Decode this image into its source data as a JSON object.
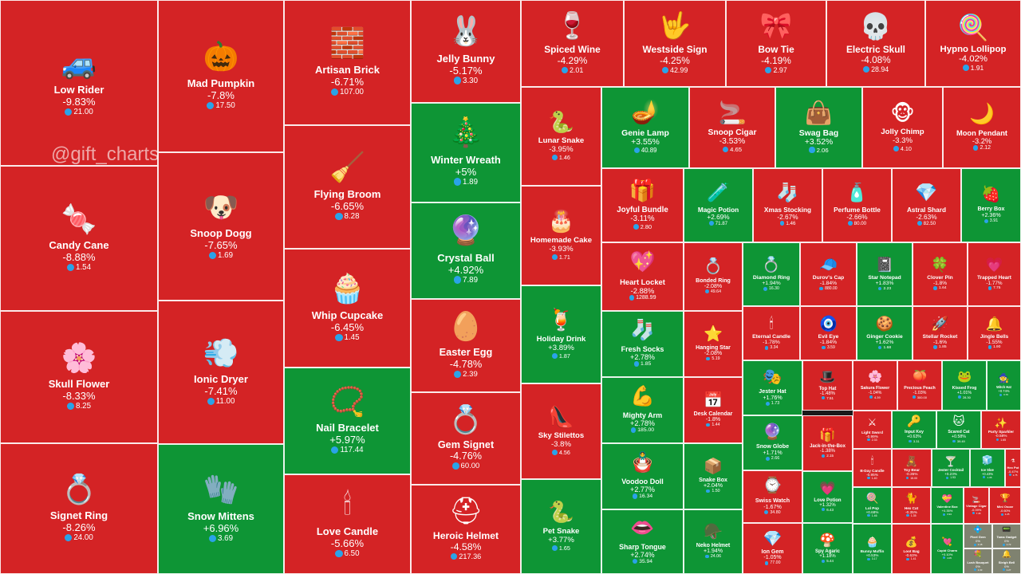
{
  "watermark": "@gift_charts",
  "colors": {
    "loss": "#d42325",
    "gain": "#0e9535",
    "neutral": "#7f8270",
    "ton": "#2aa3e8"
  },
  "tiles": [
    {
      "name": "Low Rider",
      "pct": "-9.83%",
      "price": "21.00",
      "icon": "🚙"
    },
    {
      "name": "Candy Cane",
      "pct": "-8.88%",
      "price": "1.54",
      "icon": "🍬"
    },
    {
      "name": "Skull Flower",
      "pct": "-8.33%",
      "price": "8.25",
      "icon": "🌸"
    },
    {
      "name": "Signet Ring",
      "pct": "-8.26%",
      "price": "24.00",
      "icon": "💍"
    },
    {
      "name": "Mad Pumpkin",
      "pct": "-7.8%",
      "price": "17.50",
      "icon": "🎃"
    },
    {
      "name": "Snoop Dogg",
      "pct": "-7.65%",
      "price": "1.69",
      "icon": "🐶"
    },
    {
      "name": "Ionic Dryer",
      "pct": "-7.41%",
      "price": "11.00",
      "icon": "💨"
    },
    {
      "name": "Snow Mittens",
      "pct": "+6.96%",
      "price": "3.69",
      "icon": "🧤"
    },
    {
      "name": "Artisan Brick",
      "pct": "-6.71%",
      "price": "107.00",
      "icon": "🧱"
    },
    {
      "name": "Flying Broom",
      "pct": "-6.65%",
      "price": "8.28",
      "icon": "🧹"
    },
    {
      "name": "Whip Cupcake",
      "pct": "-6.45%",
      "price": "1.45",
      "icon": "🧁"
    },
    {
      "name": "Nail Bracelet",
      "pct": "+5.97%",
      "price": "117.44",
      "icon": "📿"
    },
    {
      "name": "Love Candle",
      "pct": "-5.66%",
      "price": "6.50",
      "icon": "🕯"
    },
    {
      "name": "Jelly Bunny",
      "pct": "-5.17%",
      "price": "3.30",
      "icon": "🐰"
    },
    {
      "name": "Winter Wreath",
      "pct": "+5%",
      "price": "1.89",
      "icon": "🎄"
    },
    {
      "name": "Crystal Ball",
      "pct": "+4.92%",
      "price": "7.89",
      "icon": "🔮"
    },
    {
      "name": "Easter Egg",
      "pct": "-4.78%",
      "price": "2.39",
      "icon": "🥚"
    },
    {
      "name": "Gem Signet",
      "pct": "-4.76%",
      "price": "60.00",
      "icon": "💍"
    },
    {
      "name": "Heroic Helmet",
      "pct": "-4.58%",
      "price": "217.36",
      "icon": "⛑"
    },
    {
      "name": "Spiced Wine",
      "pct": "-4.29%",
      "price": "2.01",
      "icon": "🍷"
    },
    {
      "name": "Westside Sign",
      "pct": "-4.25%",
      "price": "42.99",
      "icon": "🤟"
    },
    {
      "name": "Bow Tie",
      "pct": "-4.19%",
      "price": "2.97",
      "icon": "🎀"
    },
    {
      "name": "Electric Skull",
      "pct": "-4.08%",
      "price": "28.94",
      "icon": "💀"
    },
    {
      "name": "Hypno Lollipop",
      "pct": "-4.02%",
      "price": "1.91",
      "icon": "🍭"
    },
    {
      "name": "Lunar Snake",
      "pct": "-3.95%",
      "price": "1.46",
      "icon": "🐍"
    },
    {
      "name": "Homemade Cake",
      "pct": "-3.93%",
      "price": "1.71",
      "icon": "🎂"
    },
    {
      "name": "Holiday Drink",
      "pct": "+3.89%",
      "price": "1.87",
      "icon": "🍹"
    },
    {
      "name": "Sky Stilettos",
      "pct": "-3.8%",
      "price": "4.56",
      "icon": "👠"
    },
    {
      "name": "Pet Snake",
      "pct": "+3.77%",
      "price": "1.65",
      "icon": "🐍"
    },
    {
      "name": "Genie Lamp",
      "pct": "+3.55%",
      "price": "40.89",
      "icon": "🪔"
    },
    {
      "name": "Snoop Cigar",
      "pct": "-3.53%",
      "price": "4.65",
      "icon": "🚬"
    },
    {
      "name": "Swag Bag",
      "pct": "+3.52%",
      "price": "2.06",
      "icon": "👜"
    },
    {
      "name": "Jolly Chimp",
      "pct": "-3.3%",
      "price": "4.10",
      "icon": "🐵"
    },
    {
      "name": "Moon Pendant",
      "pct": "-3.2%",
      "price": "2.12",
      "icon": "🌙"
    },
    {
      "name": "Joyful Bundle",
      "pct": "-3.11%",
      "price": "2.80",
      "icon": "🎁"
    },
    {
      "name": "Magic Potion",
      "pct": "+2.69%",
      "price": "71.87",
      "icon": "🧪"
    },
    {
      "name": "Xmas Stocking",
      "pct": "-2.67%",
      "price": "1.46",
      "icon": "🧦"
    },
    {
      "name": "Perfume Bottle",
      "pct": "-2.66%",
      "price": "80.00",
      "icon": "🧴"
    },
    {
      "name": "Astral Shard",
      "pct": "-2.63%",
      "price": "82.50",
      "icon": "💎"
    },
    {
      "name": "Berry Box",
      "pct": "+2.36%",
      "price": "3.91",
      "icon": "🍓"
    },
    {
      "name": "Heart Locket",
      "pct": "-2.88%",
      "price": "1288.99",
      "icon": "💖"
    },
    {
      "name": "Bonded Ring",
      "pct": "-2.08%",
      "price": "49.64",
      "icon": "💍"
    },
    {
      "name": "Diamond Ring",
      "pct": "+1.94%",
      "price": "16.30",
      "icon": "💍"
    },
    {
      "name": "Durov's Cap",
      "pct": "-1.84%",
      "price": "880.00",
      "icon": "🧢"
    },
    {
      "name": "Star Notepad",
      "pct": "+1.83%",
      "price": "2.23",
      "icon": "📓"
    },
    {
      "name": "Clover Pin",
      "pct": "-1.8%",
      "price": "1.64",
      "icon": "🍀"
    },
    {
      "name": "Trapped Heart",
      "pct": "-1.77%",
      "price": "7.75",
      "icon": "💗"
    },
    {
      "name": "Fresh Socks",
      "pct": "+2.78%",
      "price": "1.85",
      "icon": "🧦"
    },
    {
      "name": "Hanging Star",
      "pct": "-2.08%",
      "price": "5.19",
      "icon": "⭐"
    },
    {
      "name": "Eternal Candle",
      "pct": "-1.78%",
      "price": "3.34",
      "icon": "🕯"
    },
    {
      "name": "Evil Eye",
      "pct": "-1.84%",
      "price": "3.59",
      "icon": "🧿"
    },
    {
      "name": "Ginger Cookie",
      "pct": "+1.62%",
      "price": "1.68",
      "icon": "🍪"
    },
    {
      "name": "Stellar Rocket",
      "pct": "-1.6%",
      "price": "1.85",
      "icon": "🚀"
    },
    {
      "name": "Jingle Bells",
      "pct": "-1.55%",
      "price": "1.90",
      "icon": "🔔"
    },
    {
      "name": "Mighty Arm",
      "pct": "+2.78%",
      "price": "185.00",
      "icon": "💪"
    },
    {
      "name": "Desk Calendar",
      "pct": "-1.8%",
      "price": "1.44",
      "icon": "📅"
    },
    {
      "name": "Jester Hat",
      "pct": "+1.76%",
      "price": "1.73",
      "icon": "🎭"
    },
    {
      "name": "Top Hat",
      "pct": "-1.48%",
      "price": "7.51",
      "icon": "🎩"
    },
    {
      "name": "Sakura Flower",
      "pct": "-1.04%",
      "price": "4.39",
      "icon": "🌸"
    },
    {
      "name": "Precious Peach",
      "pct": "-1.03%",
      "price": "300.00",
      "icon": "🍑"
    },
    {
      "name": "Kissed Frog",
      "pct": "+1.01%",
      "price": "28.30",
      "icon": "🐸"
    },
    {
      "name": "Witch Hat",
      "pct": "+0.74%",
      "price": "3.70",
      "icon": "🧙"
    },
    {
      "name": "Light Sword",
      "pct": "-0.99%",
      "price": "2.33",
      "icon": "⚔"
    },
    {
      "name": "Input Key",
      "pct": "+0.63%",
      "price": "3.31",
      "icon": "🔑"
    },
    {
      "name": "Scared Cat",
      "pct": "+0.58%",
      "price": "39.49",
      "icon": "🐱"
    },
    {
      "name": "Party Sparkler",
      "pct": "-0.58%",
      "price": "1.65",
      "icon": "✨"
    },
    {
      "name": "Snow Globe",
      "pct": "+1.71%",
      "price": "2.66",
      "icon": "🔮"
    },
    {
      "name": "Jack-in-the-Box",
      "pct": "-1.38%",
      "price": "2.15",
      "icon": "🎁"
    },
    {
      "name": "B-Day Candle",
      "pct": "-0.95%",
      "price": "1.40",
      "icon": "🕯"
    },
    {
      "name": "Toy Bear",
      "pct": "-0.35%",
      "price": "15.00",
      "icon": "🧸"
    },
    {
      "name": "Jester Cocktail",
      "pct": "+0.23%",
      "price": "1.93",
      "icon": "🍸"
    },
    {
      "name": "Ice Sloe",
      "pct": "+0.43%",
      "price": "1.35",
      "icon": "🧊"
    },
    {
      "name": "Hex Pot",
      "pct": "-0.47%",
      "price": "1.75",
      "icon": "⚗"
    },
    {
      "name": "Voodoo Doll",
      "pct": "+2.77%",
      "price": "16.34",
      "icon": "🪆"
    },
    {
      "name": "Snake Box",
      "pct": "+2.04%",
      "price": "1.50",
      "icon": "📦"
    },
    {
      "name": "Swiss Watch",
      "pct": "-1.67%",
      "price": "34.80",
      "icon": "⌚"
    },
    {
      "name": "Love Potion",
      "pct": "+1.32%",
      "price": "6.43",
      "icon": "💗"
    },
    {
      "name": "Lol Pop",
      "pct": "+0.68%",
      "price": "1.46",
      "icon": "🍭"
    },
    {
      "name": "Hex Cat",
      "pct": "-0.35%",
      "price": "1.35",
      "icon": "🐈"
    },
    {
      "name": "Valentine Box",
      "pct": "+0.35%",
      "price": "3.94",
      "icon": "💝"
    },
    {
      "name": "Vintage Cigar",
      "pct": "-0.09%",
      "price": "7.45",
      "icon": "🚬"
    },
    {
      "name": "Sharp Tongue",
      "pct": "+2.74%",
      "price": "35.94",
      "icon": "👄"
    },
    {
      "name": "Neko Helmet",
      "pct": "+1.94%",
      "price": "24.06",
      "icon": "🪖"
    },
    {
      "name": "Ion Gem",
      "pct": "-1.05%",
      "price": "77.00",
      "icon": "💎"
    },
    {
      "name": "Spy Agaric",
      "pct": "+1.18%",
      "price": "5.44",
      "icon": "🍄"
    },
    {
      "name": "Bunny Muffin",
      "pct": "+0.53%",
      "price": "3.17",
      "icon": "🧁"
    },
    {
      "name": "Loot Bag",
      "pct": "-0.63%",
      "price": "1.41",
      "icon": "💰"
    },
    {
      "name": "Cupid Charm",
      "pct": "+0.10%",
      "price": "4.05",
      "icon": "💘"
    },
    {
      "name": "Mini Oscar",
      "pct": "-0.60%",
      "price": "1.25",
      "icon": "🏆"
    },
    {
      "name": "Pixel Gem",
      "pct": "0%",
      "price": "1.18",
      "icon": "💠"
    },
    {
      "name": "Tama Gadget",
      "pct": "0%",
      "price": "1.72",
      "icon": "📟"
    },
    {
      "name": "Lush Bouquet",
      "pct": "0%",
      "price": "1.33",
      "icon": "💐"
    },
    {
      "name": "Sleigh Bell",
      "pct": "0%",
      "price": "1.27",
      "icon": "🔔"
    },
    {
      "name": "Record Player",
      "pct": "0%",
      "price": "3.68",
      "icon": "📀"
    },
    {
      "name": "Crystal Gift",
      "pct": "0%",
      "price": "2.21",
      "icon": "🎁"
    },
    {
      "name": "Gold Gem",
      "pct": "0%",
      "price": "1.10",
      "icon": "💛"
    }
  ]
}
